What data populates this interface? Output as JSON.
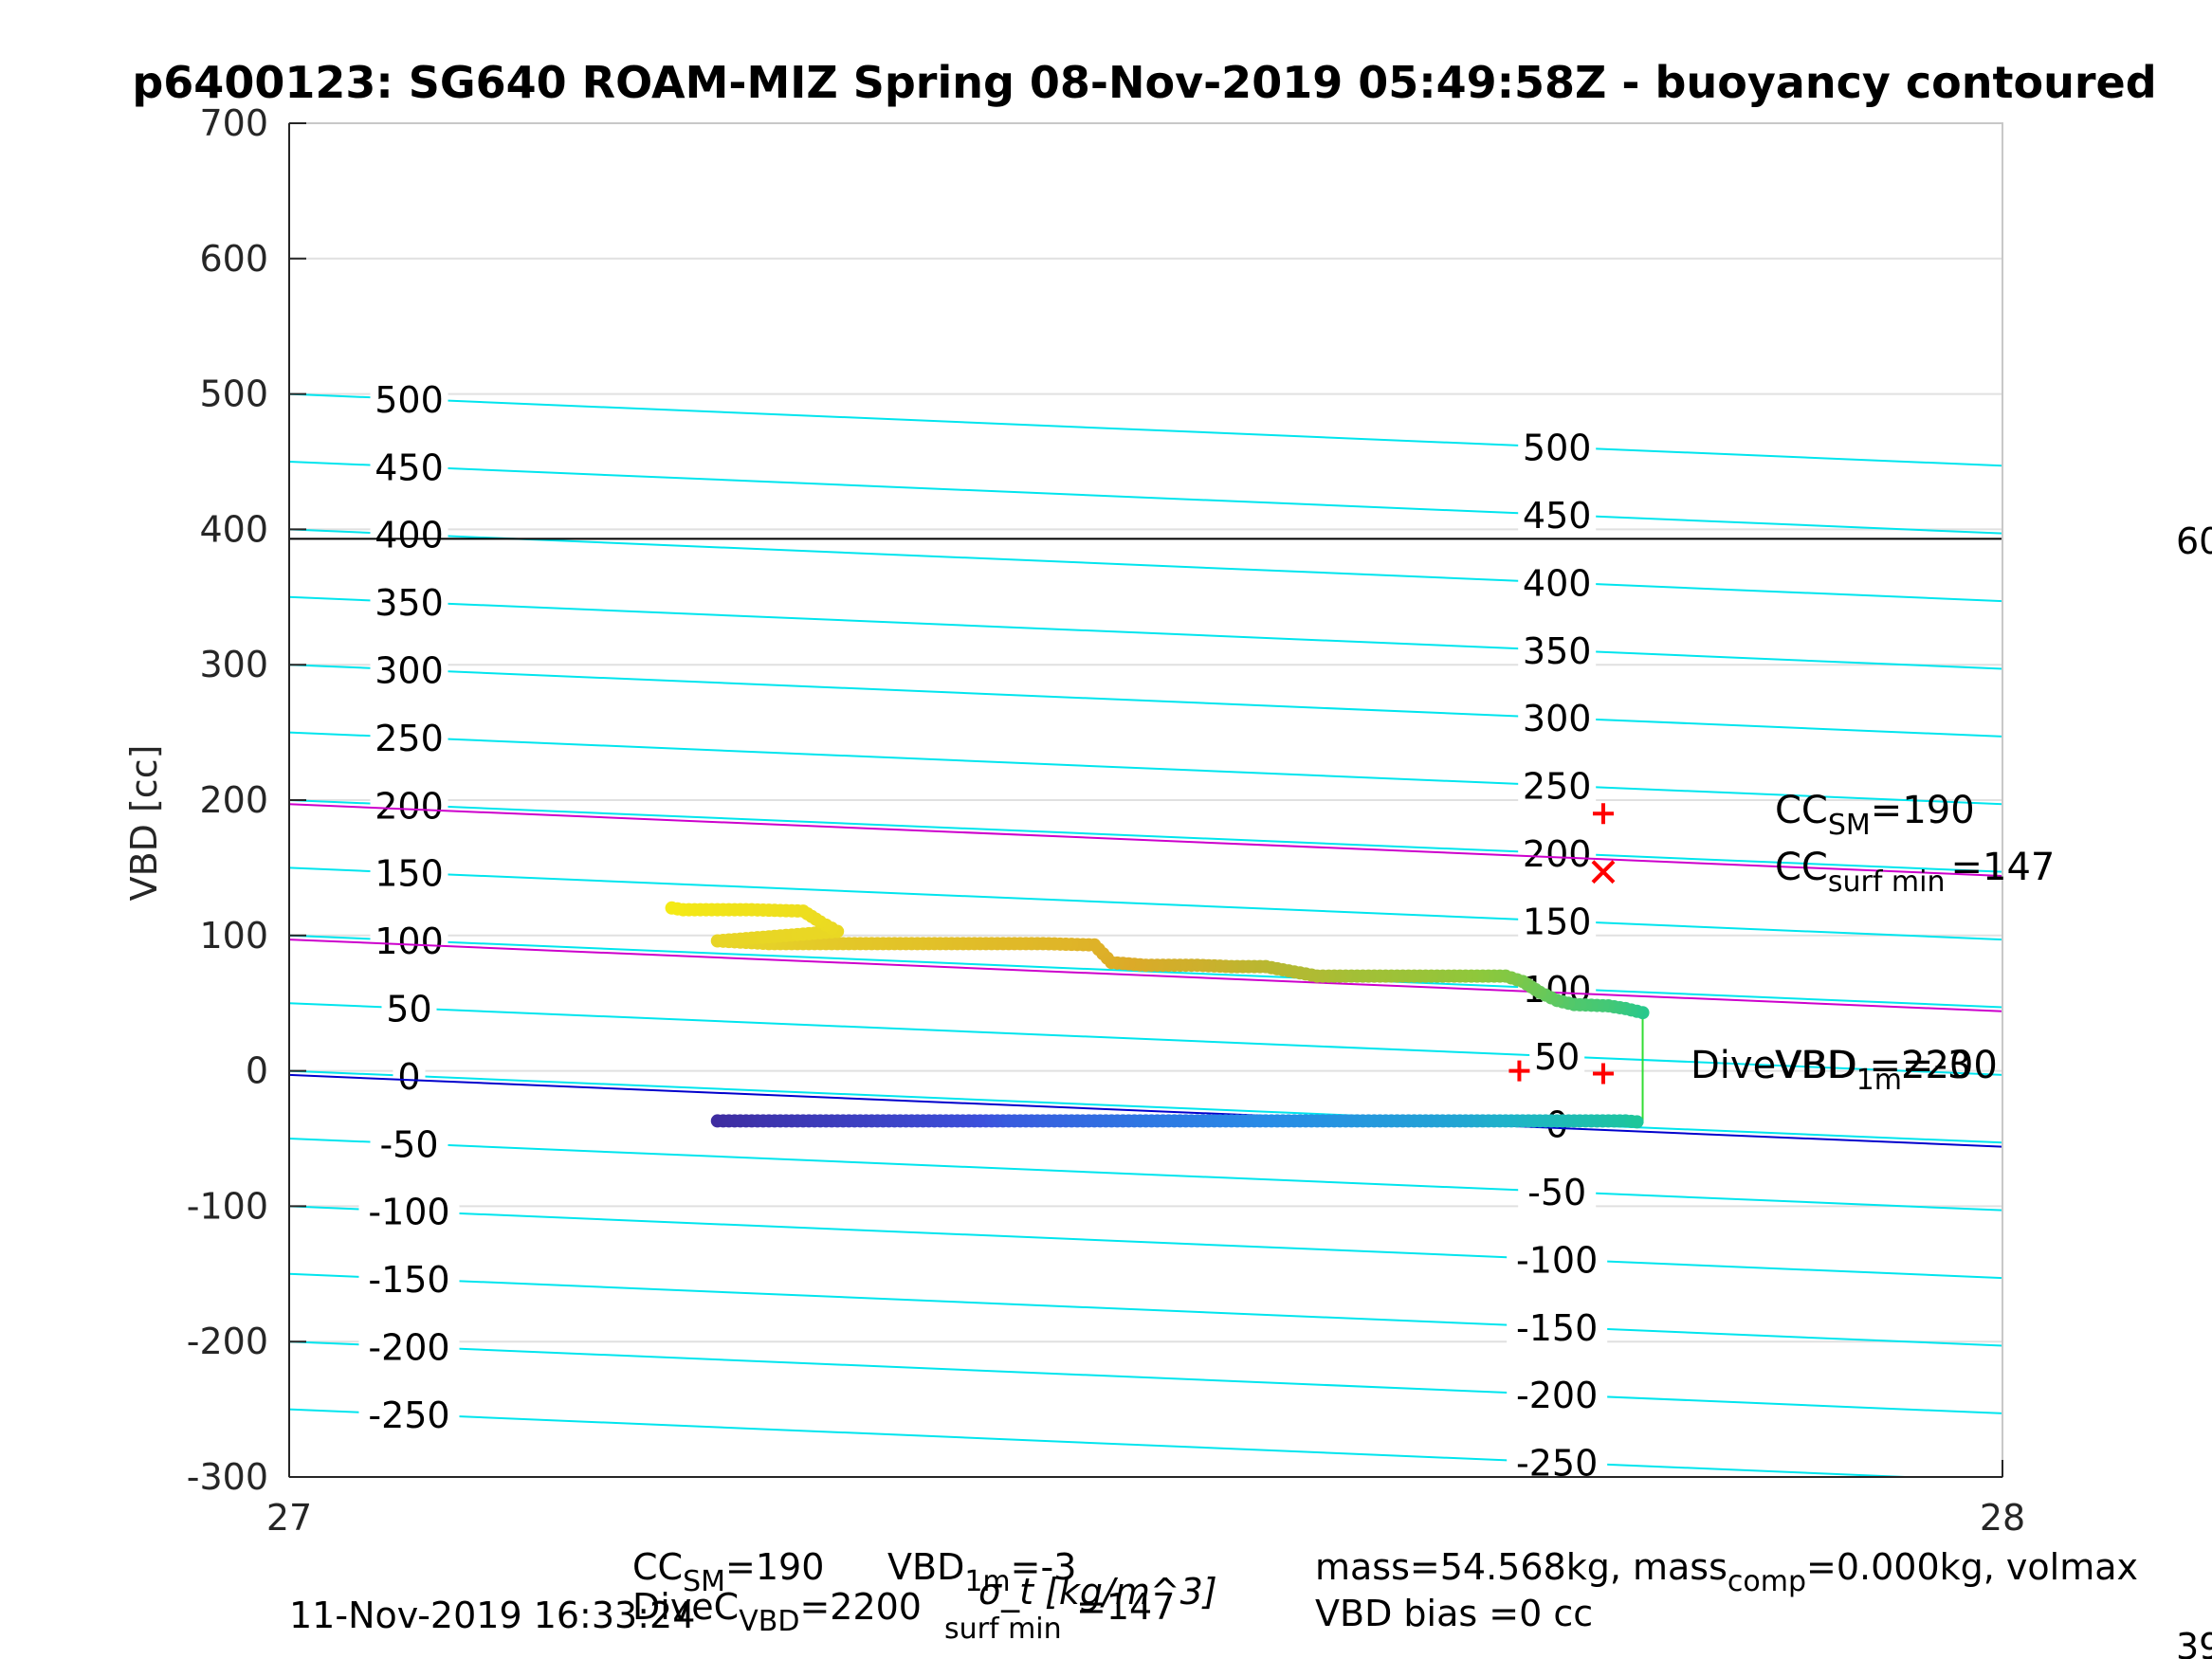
{
  "chart_data": {
    "type": "scatter",
    "title": "p6400123: SG640 ROAM-MIZ Spring 08-Nov-2019 05:49:58Z - buoyancy contoured",
    "xlabel": "σ_t [kg/m^3]",
    "ylabel": "VBD [cc]",
    "xlim": [
      27,
      28
    ],
    "ylim": [
      -300,
      700
    ],
    "x_ticks": [
      "27",
      "28"
    ],
    "y_ticks": [
      "-300",
      "-200",
      "-100",
      "0",
      "100",
      "200",
      "300",
      "400",
      "500",
      "600",
      "700"
    ],
    "grid": "horizontal",
    "black_hline": 393,
    "contours": {
      "color": "#00e5ee",
      "slope_cc_per_unit": -53,
      "values": [
        -300,
        -250,
        -200,
        -150,
        -100,
        -50,
        0,
        50,
        100,
        150,
        200,
        250,
        300,
        350,
        400,
        450,
        500
      ],
      "labels_left": [
        "-250",
        "-200",
        "-150",
        "-100",
        "-50",
        "0",
        "50",
        "100",
        "150",
        "200",
        "250",
        "300",
        "350",
        "400",
        "450",
        "500"
      ],
      "labels_right": [
        "-250",
        "-200",
        "-150",
        "-100",
        "-50",
        "0",
        "50",
        "100",
        "150",
        "200",
        "250",
        "300",
        "350",
        "400",
        "450",
        "500"
      ]
    },
    "magenta_lines": {
      "color": "#cc00cc",
      "values": [
        97,
        197
      ]
    },
    "blue_line": {
      "color": "#0000cc",
      "values": [
        -3
      ]
    },
    "series": [
      {
        "color_map": "dive-blue",
        "points": [
          [
            27.25,
            -37
          ],
          [
            27.28,
            -37
          ],
          [
            27.32,
            -37
          ],
          [
            27.36,
            -37
          ],
          [
            27.4,
            -37
          ],
          [
            27.42,
            -37
          ],
          [
            27.46,
            -37
          ],
          [
            27.5,
            -37
          ],
          [
            27.55,
            -37
          ],
          [
            27.6,
            -37
          ],
          [
            27.64,
            -37
          ],
          [
            27.68,
            -37
          ],
          [
            27.7,
            -37
          ],
          [
            27.72,
            -37
          ],
          [
            27.74,
            -37
          ],
          [
            27.76,
            -37
          ],
          [
            27.78,
            -37
          ],
          [
            27.79,
            -38
          ]
        ]
      },
      {
        "color_map": "climb-yellow",
        "points": [
          [
            27.79,
            43
          ],
          [
            27.78,
            46
          ],
          [
            27.77,
            48
          ],
          [
            27.75,
            49
          ],
          [
            27.74,
            52
          ],
          [
            27.73,
            58
          ],
          [
            27.72,
            66
          ],
          [
            27.71,
            70
          ],
          [
            27.69,
            70
          ],
          [
            27.66,
            70
          ],
          [
            27.62,
            70
          ],
          [
            27.6,
            70
          ],
          [
            27.57,
            77
          ],
          [
            27.55,
            77
          ],
          [
            27.53,
            78
          ],
          [
            27.5,
            78
          ],
          [
            27.48,
            80
          ],
          [
            27.47,
            93
          ],
          [
            27.44,
            94
          ],
          [
            27.4,
            94
          ],
          [
            27.37,
            94
          ],
          [
            27.33,
            94
          ],
          [
            27.3,
            94
          ],
          [
            27.28,
            94
          ],
          [
            27.25,
            96
          ],
          [
            27.32,
            103
          ],
          [
            27.31,
            110
          ],
          [
            27.3,
            118
          ],
          [
            27.27,
            119
          ],
          [
            27.25,
            119
          ],
          [
            27.23,
            119
          ],
          [
            27.22,
            121
          ]
        ]
      }
    ],
    "markers": [
      {
        "type": "+",
        "color": "#ff0000",
        "x": 27.767,
        "y": 190
      },
      {
        "type": "x",
        "color": "#ff0000",
        "x": 27.767,
        "y": 147
      },
      {
        "type": "+",
        "color": "#ff0000",
        "x": 27.718,
        "y": 0
      },
      {
        "type": "+",
        "color": "#ff0000",
        "x": 27.767,
        "y": -2
      }
    ],
    "annotations": {
      "cc_sm": {
        "base": "CC",
        "sub": "SM",
        "rest": "=190"
      },
      "cc_surf": {
        "base": "CC",
        "sub": "surf min",
        "rest": "=147"
      },
      "dive_vbd": "DiveVBD =2200",
      "vbd_1m": {
        "base": "VBD",
        "sub": "1m",
        "rest": "=-3"
      }
    },
    "footer": {
      "cc_sm": "CC",
      "cc_sm_sub": "SM",
      "cc_sm_val": "=190",
      "vbd_1m": "VBD",
      "vbd_1m_sub": "1m",
      "vbd_1m_val": "=-3",
      "dive_c": "DiveC",
      "dive_c_sub": "VBD",
      "dive_c_val": "=2200",
      "cc_surf_sub": "surf min",
      "cc_surf_val": "=147",
      "timestamp": "11-Nov-2019 16:33:24",
      "mass_line": "mass=54.568kg, mass",
      "mass_sub": "comp",
      "mass_rest": "=0.000kg, volmax",
      "vbd_bias": "VBD bias =0 cc",
      "right_edge_top": "60",
      "right_edge_bottom": "39"
    }
  }
}
